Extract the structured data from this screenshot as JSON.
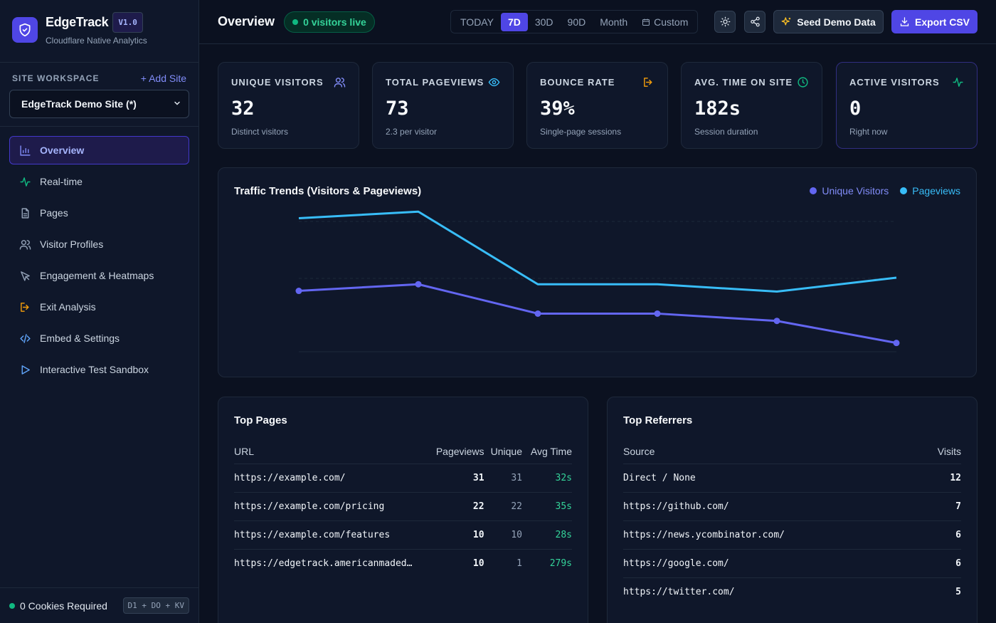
{
  "brand": {
    "name": "EdgeTrack",
    "version": "V1.0",
    "subtitle": "Cloudflare Native Analytics"
  },
  "workspace": {
    "label": "SITE WORKSPACE",
    "add_label": "+ Add Site",
    "selected": "EdgeTrack Demo Site (*)"
  },
  "nav": [
    {
      "label": "Overview",
      "icon": "bar-chart-icon",
      "active": true
    },
    {
      "label": "Real-time",
      "icon": "activity-icon"
    },
    {
      "label": "Pages",
      "icon": "file-icon"
    },
    {
      "label": "Visitor Profiles",
      "icon": "users-icon"
    },
    {
      "label": "Engagement & Heatmaps",
      "icon": "cursor-icon"
    },
    {
      "label": "Exit Analysis",
      "icon": "exit-icon"
    },
    {
      "label": "Embed & Settings",
      "icon": "code-icon"
    },
    {
      "label": "Interactive Test Sandbox",
      "icon": "play-icon"
    }
  ],
  "footer": {
    "cookies": "0 Cookies Required",
    "stack": "D1 + DO + KV"
  },
  "header": {
    "title": "Overview",
    "live": "0 visitors live",
    "ranges": [
      "TODAY",
      "7D",
      "30D",
      "90D",
      "Month"
    ],
    "selected_range": "7D",
    "custom_label": "Custom",
    "seed_label": "Seed Demo Data",
    "export_label": "Export CSV"
  },
  "kpis": [
    {
      "label": "UNIQUE VISITORS",
      "value": "32",
      "sub": "Distinct visitors",
      "icon": "users-icon",
      "color": "#818cf8"
    },
    {
      "label": "TOTAL PAGEVIEWS",
      "value": "73",
      "sub": "2.3 per visitor",
      "icon": "eye-icon",
      "color": "#38bdf8"
    },
    {
      "label": "BOUNCE RATE",
      "value": "39%",
      "sub": "Single-page sessions",
      "icon": "exit-icon",
      "color": "#f59e0b"
    },
    {
      "label": "AVG. TIME ON SITE",
      "value": "182s",
      "sub": "Session duration",
      "icon": "clock-icon",
      "color": "#10b981"
    },
    {
      "label": "ACTIVE VISITORS",
      "value": "0",
      "sub": "Right now",
      "icon": "activity-icon",
      "color": "#10b981"
    }
  ],
  "chart": {
    "title": "Traffic Trends (Visitors & Pageviews)"
  },
  "chart_data": {
    "type": "line",
    "title": "Traffic Trends (Visitors & Pageviews)",
    "x": [
      1,
      2,
      3,
      4,
      5,
      6
    ],
    "ylim": [
      0,
      20
    ],
    "series": [
      {
        "name": "Unique Visitors",
        "color": "#6366f1",
        "values": [
          8.3,
          9.2,
          5.2,
          5.2,
          4.2,
          1.2
        ]
      },
      {
        "name": "Pageviews",
        "color": "#38bdf8",
        "values": [
          18.2,
          19.1,
          9.2,
          9.2,
          8.2,
          10.1
        ]
      }
    ]
  },
  "top_pages": {
    "title": "Top Pages",
    "headers": [
      "URL",
      "Pageviews",
      "Unique",
      "Avg Time"
    ],
    "rows": [
      [
        "https://example.com/",
        "31",
        "31",
        "32s"
      ],
      [
        "https://example.com/pricing",
        "22",
        "22",
        "35s"
      ],
      [
        "https://example.com/features",
        "10",
        "10",
        "28s"
      ],
      [
        "https://edgetrack.americanmaded…",
        "10",
        "1",
        "279s"
      ]
    ]
  },
  "top_referrers": {
    "title": "Top Referrers",
    "headers": [
      "Source",
      "Visits"
    ],
    "rows": [
      [
        "Direct / None",
        "12"
      ],
      [
        "https://github.com/",
        "7"
      ],
      [
        "https://news.ycombinator.com/",
        "6"
      ],
      [
        "https://google.com/",
        "6"
      ],
      [
        "https://twitter.com/",
        "5"
      ]
    ]
  }
}
